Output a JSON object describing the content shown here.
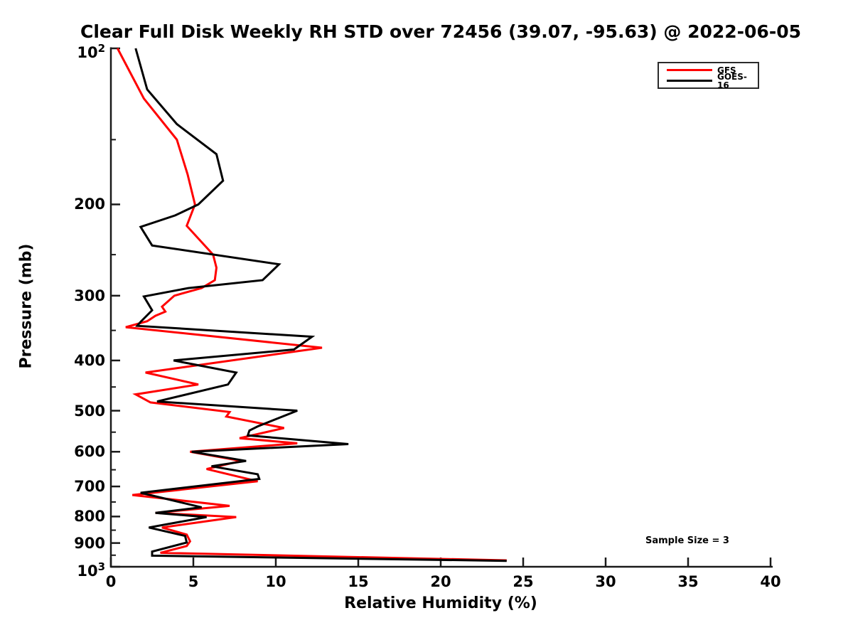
{
  "chart": {
    "title": "Clear Full Disk Weekly RH STD over 72456 (39.07, -95.63) @ 2022-06-05",
    "xlabel": "Relative Humidity (%)",
    "ylabel": "Pressure (mb)",
    "annotation": "Sample Size = 3"
  },
  "chart_data": {
    "type": "line",
    "title": "Clear Full Disk Weekly RH STD over 72456 (39.07, -95.63) @ 2022-06-05",
    "xlabel": "Relative Humidity (%)",
    "ylabel": "Pressure (mb)",
    "annotation": "Sample Size = 3",
    "x_axis": {
      "min": 0,
      "max": 40,
      "ticks": [
        0,
        5,
        10,
        15,
        20,
        25,
        30,
        35,
        40
      ],
      "grid": false
    },
    "y_axis": {
      "scale": "log",
      "min": 100,
      "max": 1000,
      "inverted": true,
      "ticks": [
        {
          "v": 100,
          "t": "10",
          "sup": "2"
        },
        {
          "v": 200,
          "t": "200"
        },
        {
          "v": 300,
          "t": "300"
        },
        {
          "v": 400,
          "t": "400"
        },
        {
          "v": 500,
          "t": "500"
        },
        {
          "v": 600,
          "t": "600"
        },
        {
          "v": 700,
          "t": "700"
        },
        {
          "v": 800,
          "t": "800"
        },
        {
          "v": 900,
          "t": "900"
        },
        {
          "v": 1000,
          "t": "10",
          "sup": "3"
        }
      ],
      "minor_ticks": [
        150,
        250,
        350,
        450,
        550,
        650,
        750,
        850,
        950
      ],
      "grid": false
    },
    "legend": {
      "position": "top-right",
      "entries": [
        "GFS",
        "GOES-16"
      ]
    },
    "axis_color": "#1a1a1a",
    "series": [
      {
        "name": "GFS",
        "color": "#ff0000",
        "points_pressure_rh": [
          [
            100,
            0.4
          ],
          [
            125,
            2.0
          ],
          [
            150,
            4.0
          ],
          [
            175,
            4.65
          ],
          [
            200,
            5.1
          ],
          [
            220,
            4.6
          ],
          [
            250,
            6.2
          ],
          [
            265,
            6.4
          ],
          [
            280,
            6.3
          ],
          [
            290,
            5.5
          ],
          [
            300,
            3.85
          ],
          [
            315,
            3.1
          ],
          [
            322,
            3.3
          ],
          [
            328,
            2.7
          ],
          [
            336,
            2.2
          ],
          [
            345,
            0.9
          ],
          [
            378,
            12.8
          ],
          [
            422,
            2.1
          ],
          [
            445,
            5.3
          ],
          [
            465,
            1.5
          ],
          [
            482,
            2.4
          ],
          [
            503,
            7.2
          ],
          [
            513,
            7.0
          ],
          [
            540,
            10.5
          ],
          [
            565,
            7.8
          ],
          [
            578,
            11.3
          ],
          [
            600,
            4.8
          ],
          [
            625,
            7.9
          ],
          [
            648,
            5.8
          ],
          [
            684,
            8.9
          ],
          [
            727,
            1.3
          ],
          [
            763,
            7.2
          ],
          [
            787,
            2.7
          ],
          [
            802,
            7.6
          ],
          [
            840,
            3.1
          ],
          [
            867,
            4.6
          ],
          [
            893,
            4.8
          ],
          [
            912,
            4.6
          ],
          [
            940,
            3.0
          ],
          [
            972,
            24.0
          ]
        ]
      },
      {
        "name": "GOES-16",
        "color": "#000000",
        "points_pressure_rh": [
          [
            100,
            1.5
          ],
          [
            120,
            2.2
          ],
          [
            140,
            4.0
          ],
          [
            160,
            6.4
          ],
          [
            180,
            6.8
          ],
          [
            200,
            5.3
          ],
          [
            210,
            3.9
          ],
          [
            221,
            1.8
          ],
          [
            240,
            2.5
          ],
          [
            261,
            10.2
          ],
          [
            280,
            9.2
          ],
          [
            290,
            4.7
          ],
          [
            301,
            2.0
          ],
          [
            320,
            2.5
          ],
          [
            337,
            1.8
          ],
          [
            343,
            1.6
          ],
          [
            360,
            12.2
          ],
          [
            381,
            11.1
          ],
          [
            400,
            3.8
          ],
          [
            422,
            7.6
          ],
          [
            445,
            7.1
          ],
          [
            480,
            2.8
          ],
          [
            500,
            11.3
          ],
          [
            536,
            8.9
          ],
          [
            546,
            8.4
          ],
          [
            558,
            8.3
          ],
          [
            580,
            14.4
          ],
          [
            600,
            4.9
          ],
          [
            625,
            8.2
          ],
          [
            640,
            6.1
          ],
          [
            663,
            8.9
          ],
          [
            677,
            9.0
          ],
          [
            720,
            1.8
          ],
          [
            768,
            5.5
          ],
          [
            787,
            2.7
          ],
          [
            802,
            5.8
          ],
          [
            840,
            2.3
          ],
          [
            872,
            4.5
          ],
          [
            898,
            4.6
          ],
          [
            935,
            2.5
          ],
          [
            952,
            2.5
          ],
          [
            974,
            24.0
          ]
        ]
      }
    ]
  }
}
